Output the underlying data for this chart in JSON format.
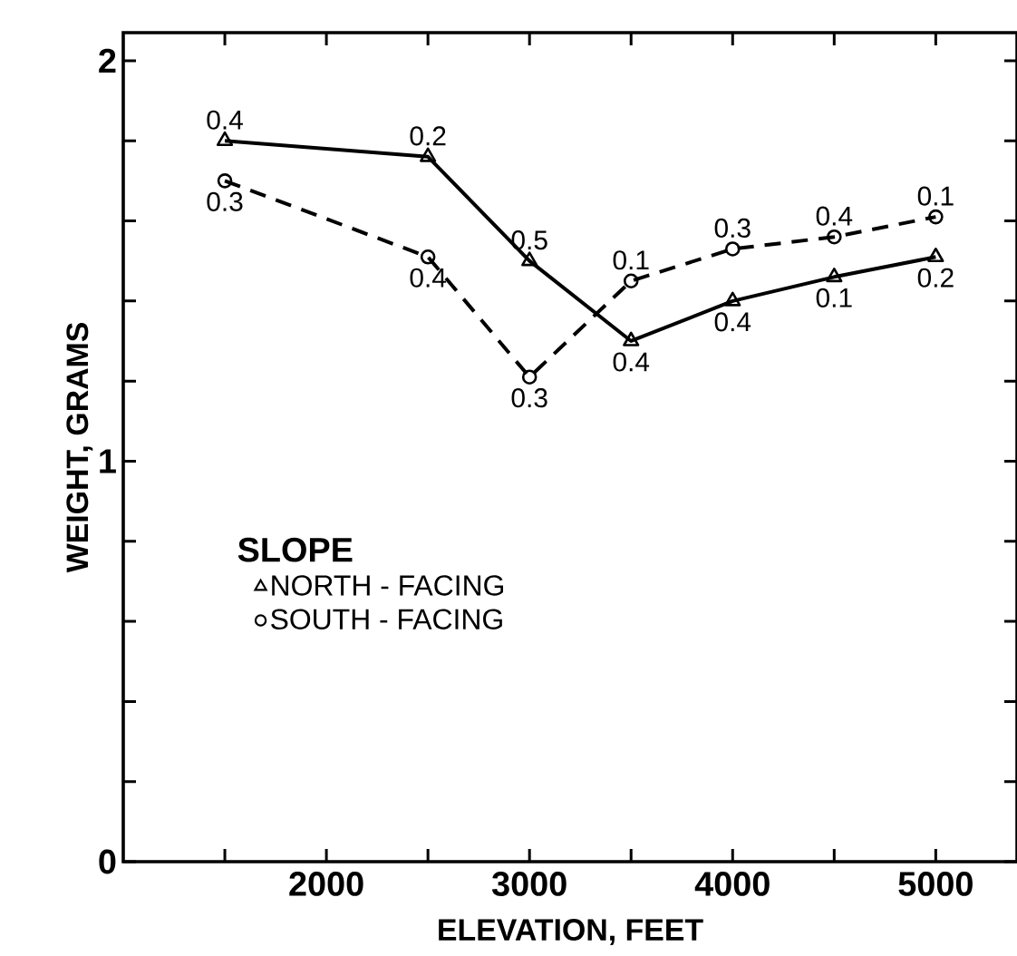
{
  "chart_data": {
    "type": "line",
    "xlabel": "ELEVATION, FEET",
    "ylabel": "WEIGHT, GRAMS",
    "legend_title": "SLOPE",
    "x": [
      1500,
      2500,
      3000,
      3500,
      4000,
      4500,
      5000
    ],
    "series": [
      {
        "name": "NORTH - FACING",
        "color": "#000000",
        "marker": "triangle",
        "line_style": "solid",
        "values": [
          1.8,
          1.76,
          1.5,
          1.3,
          1.4,
          1.46,
          1.51
        ]
      },
      {
        "name": "SOUTH - FACING",
        "color": "#000000",
        "marker": "circle",
        "line_style": "dashed",
        "values": [
          1.7,
          1.51,
          1.21,
          1.45,
          1.53,
          1.56,
          1.61
        ]
      }
    ],
    "xlim": [
      1000,
      5400
    ],
    "ylim": [
      0,
      2.07
    ],
    "xticks": [
      {
        "value": 1500,
        "label": null
      },
      2000,
      {
        "value": 2500,
        "label": null
      },
      3000,
      {
        "value": 3500,
        "label": null
      },
      4000,
      {
        "value": 4500,
        "label": null
      },
      5000
    ],
    "yticks": [
      0,
      {
        "value": 0.2,
        "label": null
      },
      {
        "value": 0.4,
        "label": null
      },
      {
        "value": 0.6,
        "label": null
      },
      {
        "value": 0.8,
        "label": null
      },
      1,
      {
        "value": 1.2,
        "label": null
      },
      {
        "value": 1.4,
        "label": null
      },
      {
        "value": 1.6,
        "label": null
      },
      {
        "value": 1.8,
        "label": null
      },
      2
    ],
    "annotations": [
      {
        "text": "0.4",
        "x": 1500,
        "y": 1.8
      },
      {
        "text": "0.3",
        "x": 1500,
        "y": 1.7
      },
      {
        "text": "0.2",
        "x": 2500,
        "y": 1.76
      },
      {
        "text": "0.4",
        "x": 2500,
        "y": 1.51
      },
      {
        "text": "0.5",
        "x": 3000,
        "y": 1.5
      },
      {
        "text": "0.3",
        "x": 3000,
        "y": 1.21
      },
      {
        "text": "0.1",
        "x": 3500,
        "y": 1.45
      },
      {
        "text": "0.4",
        "x": 3500,
        "y": 1.3
      },
      {
        "text": "0.3",
        "x": 4000,
        "y": 1.53
      },
      {
        "text": "0.4",
        "x": 4000,
        "y": 1.4
      },
      {
        "text": "0.4",
        "x": 4500,
        "y": 1.56
      },
      {
        "text": "0.1",
        "x": 4500,
        "y": 1.46
      },
      {
        "text": "0.1",
        "x": 5000,
        "y": 1.61
      },
      {
        "text": "0.2",
        "x": 5000,
        "y": 1.51
      }
    ],
    "legend": "left",
    "grid": false
  }
}
